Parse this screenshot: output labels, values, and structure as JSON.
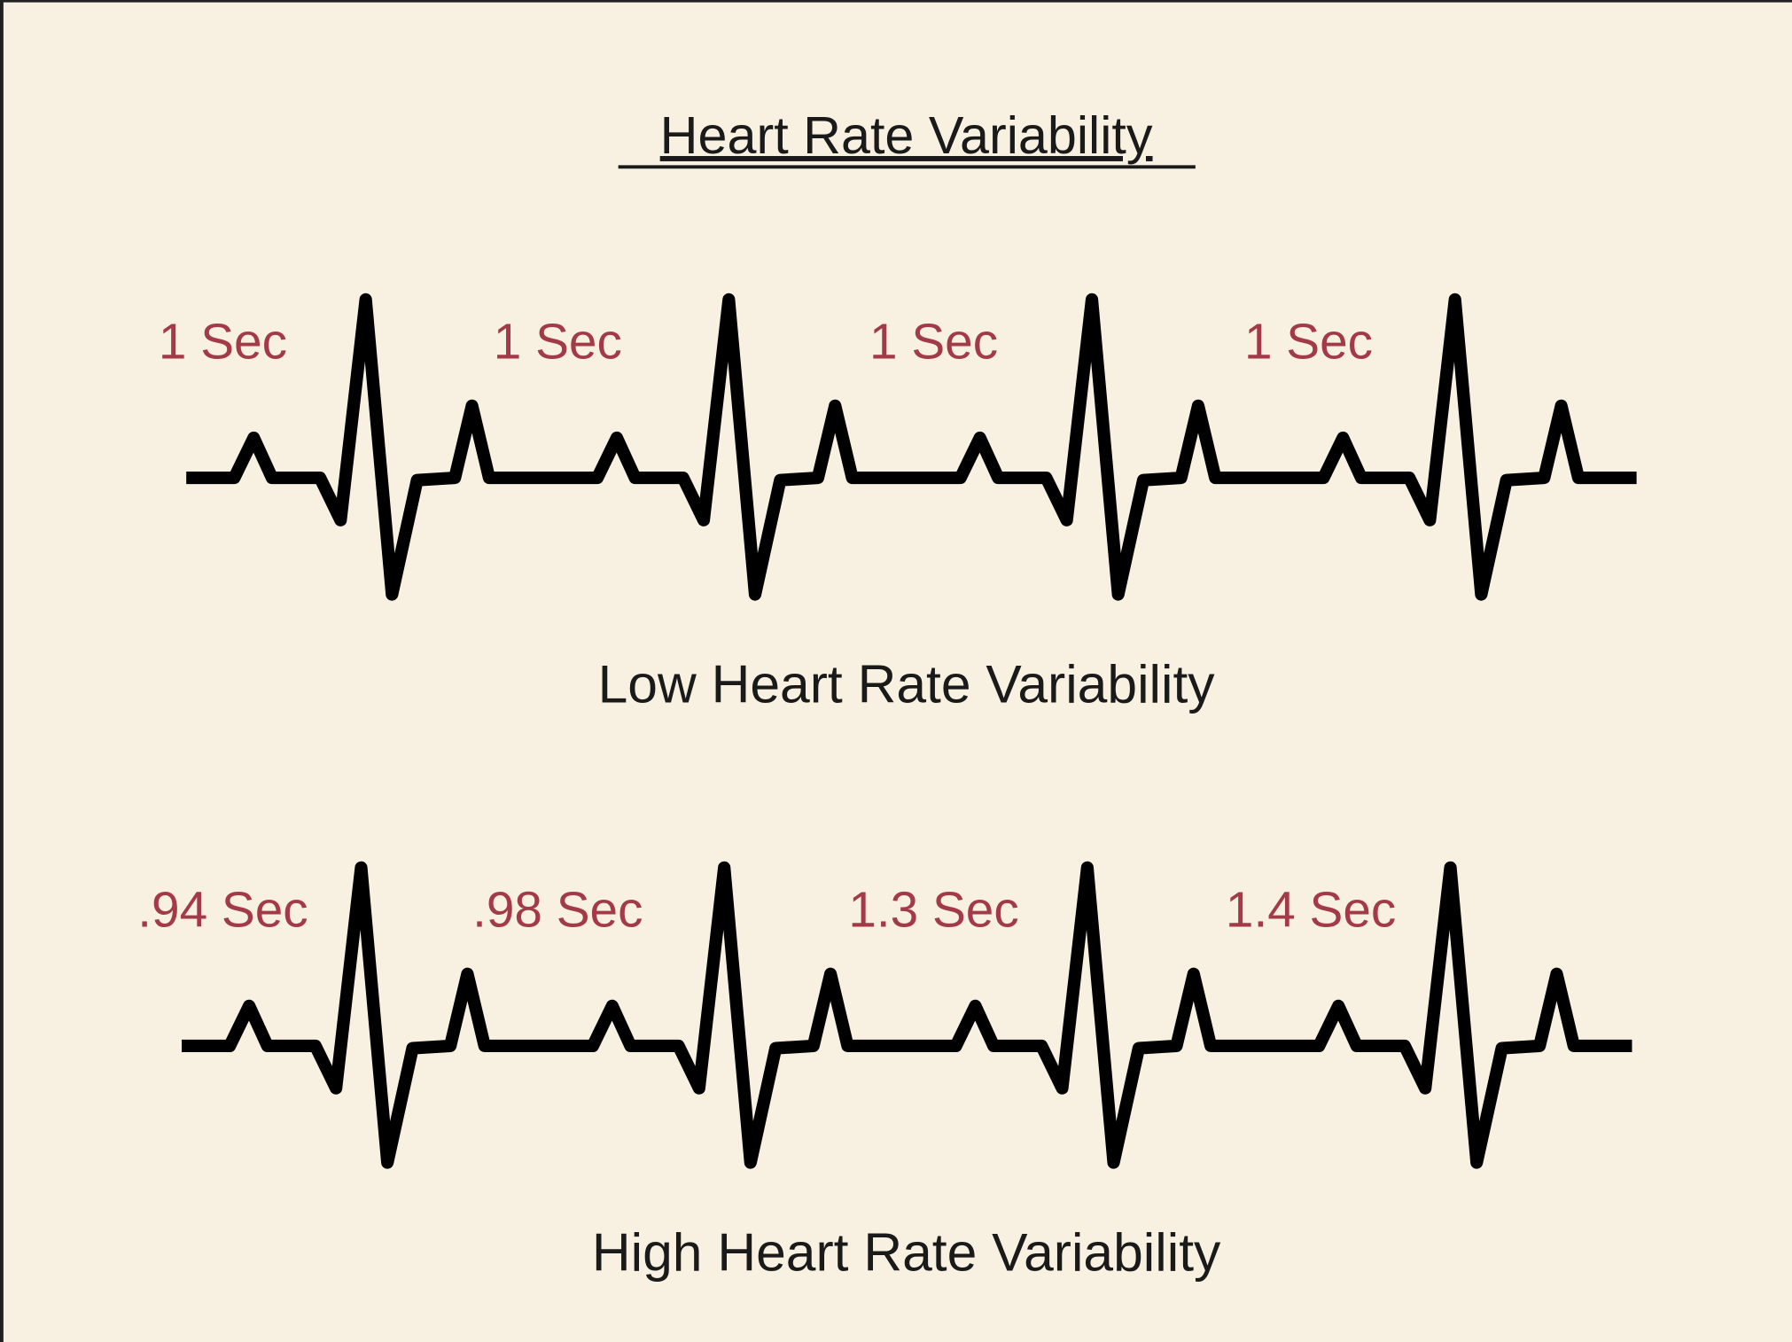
{
  "title": "Heart Rate Variability",
  "strips": [
    {
      "intervals": [
        "1 Sec",
        "1 Sec",
        "1 Sec",
        "1 Sec"
      ],
      "caption": "Low Heart Rate Variability"
    },
    {
      "intervals": [
        ".94 Sec",
        ".98 Sec",
        "1.3 Sec",
        "1.4 Sec"
      ],
      "caption": "High Heart Rate Variability"
    }
  ]
}
